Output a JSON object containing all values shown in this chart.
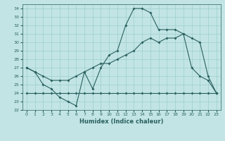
{
  "xlabel": "Humidex (Indice chaleur)",
  "xlim": [
    -0.5,
    23.5
  ],
  "ylim": [
    22,
    34.5
  ],
  "yticks": [
    22,
    23,
    24,
    25,
    26,
    27,
    28,
    29,
    30,
    31,
    32,
    33,
    34
  ],
  "xticks": [
    0,
    1,
    2,
    3,
    4,
    5,
    6,
    7,
    8,
    9,
    10,
    11,
    12,
    13,
    14,
    15,
    16,
    17,
    18,
    19,
    20,
    21,
    22,
    23
  ],
  "bg_color": "#c2e4e4",
  "line_color": "#2a6060",
  "grid_color": "#9ecece",
  "line1_x": [
    0,
    1,
    2,
    3,
    4,
    5,
    6,
    7,
    8,
    9,
    10,
    11,
    12,
    13,
    14,
    15,
    16,
    17,
    18,
    19,
    20,
    21,
    22,
    23
  ],
  "line1_y": [
    27,
    26.5,
    25,
    24.5,
    23.5,
    23,
    22.5,
    26.5,
    24.5,
    27,
    28.5,
    29,
    32,
    34,
    34,
    33.5,
    31.5,
    31.5,
    31.5,
    31,
    27,
    26,
    25.5,
    24
  ],
  "line2_x": [
    0,
    1,
    2,
    3,
    4,
    5,
    6,
    7,
    8,
    9,
    10,
    11,
    12,
    13,
    14,
    15,
    16,
    17,
    18,
    19,
    20,
    21,
    22,
    23
  ],
  "line2_y": [
    27,
    26.5,
    26,
    25.5,
    25.5,
    25.5,
    26,
    26.5,
    27,
    27.5,
    27.5,
    28,
    28.5,
    29,
    30,
    30.5,
    30,
    30.5,
    30.5,
    31,
    30.5,
    30,
    26,
    24
  ],
  "line3_x": [
    0,
    1,
    2,
    3,
    4,
    5,
    6,
    7,
    8,
    9,
    10,
    11,
    12,
    13,
    14,
    15,
    16,
    17,
    18,
    19,
    20,
    21,
    22,
    23
  ],
  "line3_y": [
    24,
    24,
    24,
    24,
    24,
    24,
    24,
    24,
    24,
    24,
    24,
    24,
    24,
    24,
    24,
    24,
    24,
    24,
    24,
    24,
    24,
    24,
    24,
    24
  ]
}
